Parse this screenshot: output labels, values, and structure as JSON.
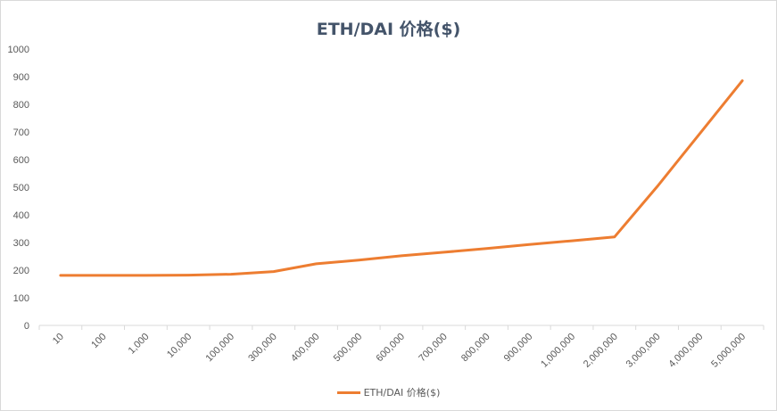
{
  "chart_data": {
    "type": "line",
    "title": "ETH/DAI 价格($)",
    "categories": [
      "10",
      "100",
      "1,000",
      "10,000",
      "100,000",
      "300,000",
      "400,000",
      "500,000",
      "600,000",
      "700,000",
      "800,000",
      "900,000",
      "1,000,000",
      "2,000,000",
      "3,000,000",
      "4,000,000",
      "5,000,000"
    ],
    "series": [
      {
        "name": "ETH/DAI 价格($)",
        "values": [
          181,
          181,
          181,
          182,
          185,
          195,
          223,
          236,
          252,
          265,
          278,
          293,
          306,
          320,
          502,
          694,
          885
        ],
        "color": "#ed7d31"
      }
    ],
    "ylim": [
      0,
      1000
    ],
    "yticks": [
      "0",
      "100",
      "200",
      "300",
      "400",
      "500",
      "600",
      "700",
      "800",
      "900",
      "1000"
    ],
    "grid": false,
    "legend_position": "bottom"
  }
}
